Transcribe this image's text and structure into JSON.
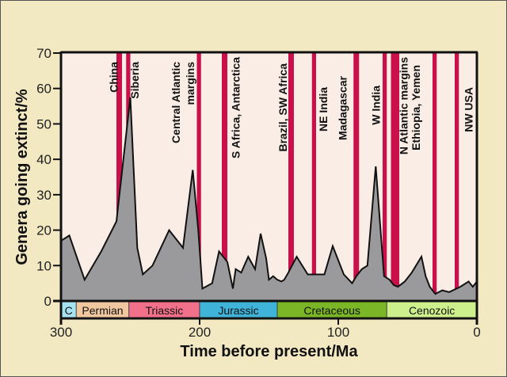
{
  "chart_data": {
    "type": "area",
    "title": "",
    "xlabel": "Time before present/Ma",
    "ylabel": "Genera going extinct/%",
    "xlim": [
      300,
      0
    ],
    "ylim": [
      0,
      70
    ],
    "x_ticks": [
      300,
      200,
      100,
      0
    ],
    "y_ticks": [
      0,
      10,
      20,
      30,
      40,
      50,
      60,
      70
    ],
    "grid": false,
    "series": [
      {
        "name": "Genera going extinct",
        "x": [
          300,
          294,
          283,
          271,
          260,
          250,
          245,
          241,
          234,
          222,
          212,
          205,
          201,
          198,
          191,
          186,
          180,
          176,
          174,
          170,
          165,
          160,
          156,
          152,
          150,
          147,
          144,
          141,
          139,
          136,
          130,
          122,
          115,
          110,
          104,
          96,
          90,
          87,
          83,
          79,
          73,
          67,
          63,
          60,
          57,
          52,
          47,
          40,
          37,
          34,
          30,
          25,
          20,
          12,
          6,
          3,
          0
        ],
        "values": [
          17,
          18.5,
          6,
          14,
          22.5,
          57.5,
          15,
          7.5,
          10,
          20,
          15,
          37,
          20,
          3.5,
          5,
          14,
          11,
          3.5,
          9,
          8,
          12.5,
          9,
          19,
          12,
          6,
          7,
          6,
          5.5,
          6,
          8,
          12.5,
          7.5,
          7.5,
          7.5,
          15.5,
          7.5,
          5,
          7,
          9,
          10,
          38,
          7,
          6,
          4.5,
          4,
          5.5,
          8,
          12.5,
          7,
          4,
          2,
          3,
          2.5,
          4,
          5.5,
          4,
          5.5
        ]
      }
    ],
    "volcanic_provinces": [
      {
        "label": "China",
        "age_from": 260,
        "age_to": 256
      },
      {
        "label": "Siberia",
        "age_from": 253,
        "age_to": 250
      },
      {
        "label": "Central Atlantic margins",
        "label_lines": [
          "Central Atlantic",
          "margins"
        ],
        "age_from": 202,
        "age_to": 199
      },
      {
        "label": "S Africa, Antarctica",
        "age_from": 184,
        "age_to": 180
      },
      {
        "label": "Brazil, SW Africa",
        "age_from": 136,
        "age_to": 132
      },
      {
        "label": "NE India",
        "age_from": 119,
        "age_to": 116
      },
      {
        "label": "Madagascar",
        "age_from": 89,
        "age_to": 85
      },
      {
        "label": "W India",
        "age_from": 68,
        "age_to": 65
      },
      {
        "label": "N Atlantic margins",
        "age_from": 62,
        "age_to": 56
      },
      {
        "label": "Ethiopia, Yemen",
        "age_from": 32,
        "age_to": 29
      },
      {
        "label": "NW USA",
        "age_from": 16,
        "age_to": 13
      }
    ],
    "periods": [
      {
        "name": "C",
        "from": 300,
        "to": 289,
        "color": "#a6e2f2"
      },
      {
        "name": "Permian",
        "from": 289,
        "to": 251,
        "color": "#f1c7a0"
      },
      {
        "name": "Triassic",
        "from": 251,
        "to": 200,
        "color": "#f2708a"
      },
      {
        "name": "Jurassic",
        "from": 200,
        "to": 144,
        "color": "#3fb3d8"
      },
      {
        "name": "Cretaceous",
        "from": 144,
        "to": 65,
        "color": "#7ab625"
      },
      {
        "name": "Cenozoic",
        "from": 65,
        "to": 0,
        "color": "#cdf08c"
      }
    ],
    "colors": {
      "background": "#f2e8c2",
      "plot_background": "#f9ede5",
      "area_fill": "#9a9a9c",
      "band": "#c9104b",
      "line": "#111111"
    }
  }
}
